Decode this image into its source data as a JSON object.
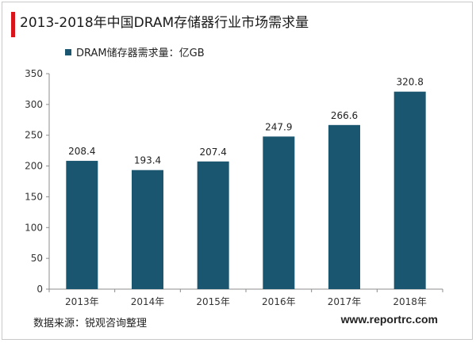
{
  "title": "2013-2018年中国DRAM存储器行业市场需求量",
  "legend": {
    "label": "DRAM储存器需求量：亿GB"
  },
  "source": "数据来源：锐观咨询整理",
  "website": "www.reportrc.com",
  "colors": {
    "bar": "#1b5670",
    "accent": "#d9141b",
    "axis": "#8c8c8c"
  },
  "chart_data": {
    "type": "bar",
    "title": "2013-2018年中国DRAM存储器行业市场需求量",
    "categories": [
      "2013年",
      "2014年",
      "2015年",
      "2016年",
      "2017年",
      "2018年"
    ],
    "series": [
      {
        "name": "DRAM储存器需求量：亿GB",
        "values": [
          208.4,
          193.4,
          207.4,
          247.9,
          266.6,
          320.8
        ]
      }
    ],
    "ylim": [
      0,
      350
    ],
    "yticks": [
      0,
      50,
      100,
      150,
      200,
      250,
      300,
      350
    ],
    "grid": false,
    "legend_position": "top-left",
    "data_labels": true
  }
}
